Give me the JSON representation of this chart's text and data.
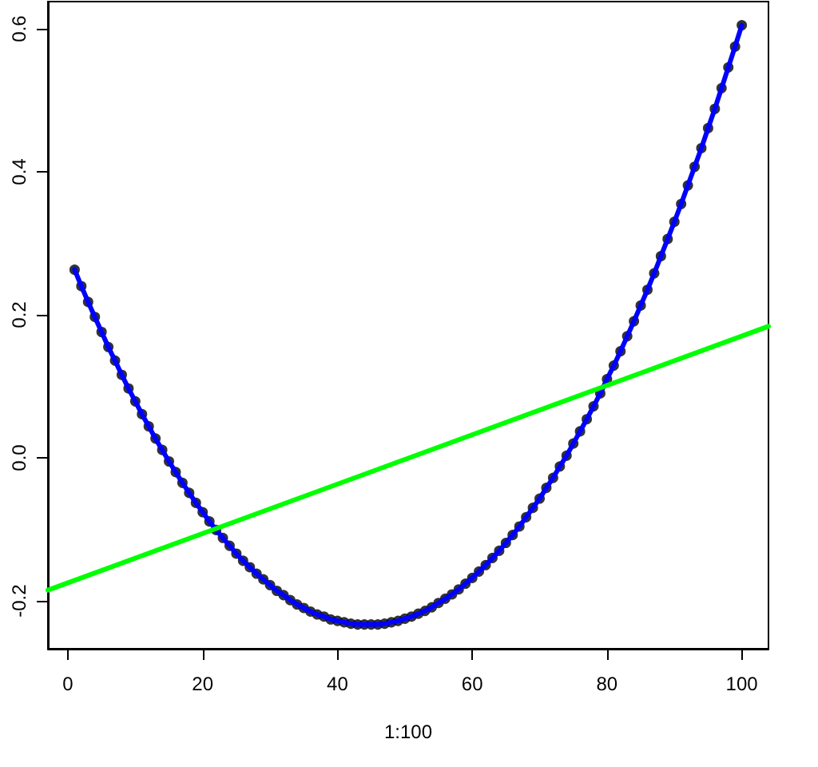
{
  "chart_data": {
    "type": "line",
    "xlabel": "1:100",
    "marker": "circle",
    "xlim": [
      -2.96,
      103.96
    ],
    "ylim": [
      -0.267,
      0.638
    ],
    "xticks": [
      0,
      20,
      40,
      60,
      80,
      100
    ],
    "yticks": [
      -0.2,
      {
        "value": 0,
        "label": "0.0"
      },
      0.2,
      0.4,
      0.6
    ],
    "x": [
      1,
      2,
      3,
      4,
      5,
      6,
      7,
      8,
      9,
      10,
      11,
      12,
      13,
      14,
      15,
      16,
      17,
      18,
      19,
      20,
      21,
      22,
      23,
      24,
      25,
      26,
      27,
      28,
      29,
      30,
      31,
      32,
      33,
      34,
      35,
      36,
      37,
      38,
      39,
      40,
      41,
      42,
      43,
      44,
      45,
      46,
      47,
      48,
      49,
      50,
      51,
      52,
      53,
      54,
      55,
      56,
      57,
      58,
      59,
      60,
      61,
      62,
      63,
      64,
      65,
      66,
      67,
      68,
      69,
      70,
      71,
      72,
      73,
      74,
      75,
      76,
      77,
      78,
      79,
      80,
      81,
      82,
      83,
      84,
      85,
      86,
      87,
      88,
      89,
      90,
      91,
      92,
      93,
      94,
      95,
      96,
      97,
      98,
      99,
      100
    ],
    "series": [
      {
        "color": "#0000ff",
        "values": [
          0.263,
          0.24,
          0.218,
          0.197,
          0.176,
          0.155,
          0.136,
          0.116,
          0.097,
          0.079,
          0.061,
          0.044,
          0.027,
          0.011,
          -0.005,
          -0.02,
          -0.035,
          -0.049,
          -0.063,
          -0.076,
          -0.089,
          -0.101,
          -0.112,
          -0.123,
          -0.134,
          -0.144,
          -0.153,
          -0.162,
          -0.17,
          -0.178,
          -0.186,
          -0.192,
          -0.199,
          -0.205,
          -0.21,
          -0.215,
          -0.219,
          -0.222,
          -0.226,
          -0.228,
          -0.23,
          -0.232,
          -0.233,
          -0.233,
          -0.233,
          -0.233,
          -0.232,
          -0.23,
          -0.228,
          -0.225,
          -0.222,
          -0.218,
          -0.214,
          -0.209,
          -0.203,
          -0.197,
          -0.191,
          -0.184,
          -0.176,
          -0.168,
          -0.159,
          -0.15,
          -0.14,
          -0.13,
          -0.119,
          -0.108,
          -0.096,
          -0.083,
          -0.07,
          -0.057,
          -0.042,
          -0.028,
          -0.012,
          0.003,
          0.02,
          0.037,
          0.054,
          0.072,
          0.09,
          0.11,
          0.129,
          0.149,
          0.17,
          0.191,
          0.213,
          0.235,
          0.258,
          0.282,
          0.306,
          0.33,
          0.355,
          0.381,
          0.407,
          0.433,
          0.461,
          0.488,
          0.517,
          0.546,
          0.575,
          0.605
        ]
      },
      {
        "color": "#00ff00",
        "marker": "none",
        "x": [
          -2.96,
          103.96
        ],
        "values": [
          -0.185,
          0.184
        ]
      }
    ]
  }
}
